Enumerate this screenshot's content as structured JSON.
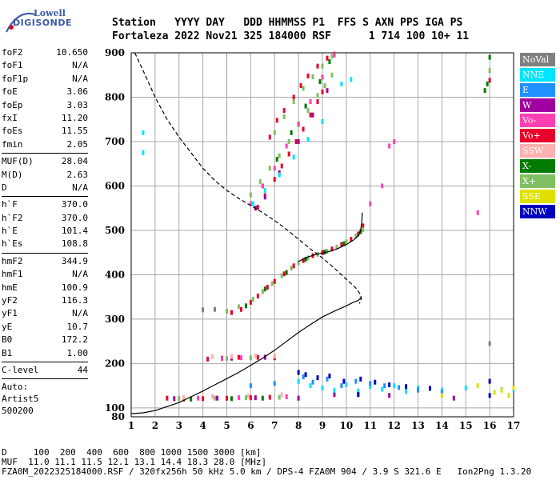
{
  "logo": {
    "line1": "Lowell",
    "line2": "DIGISONDE"
  },
  "header": {
    "line1": "Station   YYYY DAY   DDD HHMMSS P1  FFS S AXN PPS IGA PS",
    "line2": "Fortaleza 2022 Nov21 325 184000 RSF      1 714 100 10+ 11"
  },
  "params": [
    {
      "name": "foF2",
      "value": "10.650"
    },
    {
      "name": "foF1",
      "value": "N/A"
    },
    {
      "name": "foF1p",
      "value": "N/A"
    },
    {
      "name": "foE",
      "value": "3.06"
    },
    {
      "name": "foEp",
      "value": "3.03"
    },
    {
      "name": "fxI",
      "value": "11.20"
    },
    {
      "name": "foEs",
      "value": "11.55"
    },
    {
      "name": "fmin",
      "value": "2.05"
    },
    {
      "sep": true
    },
    {
      "name": "MUF(D)",
      "value": "28.04"
    },
    {
      "name": "M(D)",
      "value": "2.63"
    },
    {
      "name": "D",
      "value": "N/A"
    },
    {
      "sep": true
    },
    {
      "name": "h`F",
      "value": "370.0"
    },
    {
      "name": "h`F2",
      "value": "370.0"
    },
    {
      "name": "h`E",
      "value": "101.4"
    },
    {
      "name": "h`Es",
      "value": "108.8"
    },
    {
      "sep": true
    },
    {
      "name": "hmF2",
      "value": "344.9"
    },
    {
      "name": "hmF1",
      "value": "N/A"
    },
    {
      "name": "hmE",
      "value": "100.9"
    },
    {
      "name": "yF2",
      "value": "116.3"
    },
    {
      "name": "yF1",
      "value": "N/A"
    },
    {
      "name": "yE",
      "value": "10.7"
    },
    {
      "name": "B0",
      "value": "172.2"
    },
    {
      "name": "B1",
      "value": "1.00"
    },
    {
      "sep": true
    },
    {
      "name": "C-level",
      "value": "44"
    },
    {
      "sep": true
    },
    {
      "text": "Auto:"
    },
    {
      "text": "Artist5"
    },
    {
      "text": "500200"
    }
  ],
  "legend": [
    {
      "label": "NoVal",
      "color": "#808080"
    },
    {
      "label": "NNE",
      "color": "#00e5ff"
    },
    {
      "label": "E",
      "color": "#1e90ff"
    },
    {
      "label": "W",
      "color": "#a000a0"
    },
    {
      "label": "Vo-",
      "color": "#ff40b0"
    },
    {
      "label": "Vo+",
      "color": "#e8002a"
    },
    {
      "label": "SSW",
      "color": "#ffb0b0"
    },
    {
      "label": "X-",
      "color": "#007a00"
    },
    {
      "label": "X+",
      "color": "#80c060"
    },
    {
      "label": "SSE",
      "color": "#e0e000"
    },
    {
      "label": "NNW",
      "color": "#0000c0"
    }
  ],
  "footer": {
    "line1": "D     100  200  400  600  800 1000 1500 3000 [km]",
    "line2": "MUF  11.0 11.1 11.5 12.1 13.1 14.4 18.3 28.0 [MHz]",
    "line3": "FZA0M_2022325184000.RSF / 320fx256h 50 kHz 5.0 km / DPS-4 FZA0M 904 / 3.9 S 321.6 E   Ion2Png 1.3.20"
  },
  "chart_data": {
    "type": "scatter",
    "xlim": [
      1,
      17
    ],
    "ylim": [
      80,
      900
    ],
    "xticks": [
      1,
      2,
      3,
      4,
      5,
      6,
      7,
      8,
      9,
      10,
      11,
      12,
      13,
      14,
      15,
      16,
      17
    ],
    "yticks": [
      100,
      200,
      300,
      400,
      500,
      600,
      700,
      800,
      900
    ],
    "ytick_labels_extra": [
      80
    ],
    "grid": true,
    "legend_position": "right",
    "series": [
      {
        "legend_index": 5,
        "points": [
          [
            5.2,
            315
          ],
          [
            5.6,
            322
          ],
          [
            6.0,
            338
          ],
          [
            6.3,
            352
          ],
          [
            6.7,
            372
          ],
          [
            7.0,
            385
          ],
          [
            7.4,
            402
          ],
          [
            7.8,
            420
          ],
          [
            8.2,
            432
          ],
          [
            8.6,
            443
          ],
          [
            9.0,
            450
          ],
          [
            9.4,
            458
          ],
          [
            9.8,
            468
          ],
          [
            10.2,
            480
          ],
          [
            10.5,
            492
          ],
          [
            10.7,
            510
          ],
          [
            6.3,
            552
          ],
          [
            6.6,
            578
          ],
          [
            7.0,
            615
          ],
          [
            7.3,
            645
          ],
          [
            7.6,
            672
          ],
          [
            7.9,
            700
          ],
          [
            8.2,
            728
          ],
          [
            8.5,
            760
          ],
          [
            8.8,
            790
          ],
          [
            9.0,
            812
          ],
          [
            6.8,
            710
          ],
          [
            7.1,
            748
          ],
          [
            7.4,
            770
          ],
          [
            7.8,
            800
          ],
          [
            8.1,
            826
          ],
          [
            8.4,
            848
          ],
          [
            8.8,
            870
          ],
          [
            9.2,
            888
          ],
          [
            9.5,
            897
          ],
          [
            2.5,
            122
          ],
          [
            3.2,
            120
          ],
          [
            4.0,
            121
          ],
          [
            5.0,
            122
          ],
          [
            6.0,
            123
          ],
          [
            6.8,
            124
          ],
          [
            4.2,
            210
          ],
          [
            4.8,
            212
          ],
          [
            5.5,
            214
          ],
          [
            6.3,
            214
          ],
          [
            7.0,
            213
          ],
          [
            16.0,
            838
          ]
        ]
      },
      {
        "legend_index": 8,
        "points": [
          [
            5.0,
            318
          ],
          [
            5.5,
            328
          ],
          [
            6.1,
            345
          ],
          [
            6.5,
            362
          ],
          [
            6.9,
            380
          ],
          [
            7.3,
            398
          ],
          [
            7.7,
            415
          ],
          [
            8.0,
            427
          ],
          [
            8.4,
            438
          ],
          [
            8.8,
            446
          ],
          [
            9.2,
            453
          ],
          [
            9.6,
            462
          ],
          [
            10.0,
            474
          ],
          [
            10.4,
            487
          ],
          [
            10.7,
            502
          ],
          [
            6.0,
            580
          ],
          [
            6.4,
            610
          ],
          [
            6.8,
            640
          ],
          [
            7.2,
            668
          ],
          [
            7.6,
            700
          ],
          [
            8.0,
            738
          ],
          [
            8.4,
            770
          ],
          [
            8.8,
            804
          ],
          [
            9.1,
            826
          ],
          [
            9.4,
            850
          ],
          [
            7.0,
            720
          ],
          [
            7.4,
            756
          ],
          [
            7.8,
            790
          ],
          [
            8.2,
            820
          ],
          [
            8.6,
            846
          ],
          [
            9.0,
            870
          ],
          [
            9.4,
            892
          ],
          [
            3.0,
            121
          ],
          [
            4.5,
            122
          ],
          [
            5.8,
            123
          ],
          [
            7.2,
            124
          ],
          [
            5.0,
            211
          ],
          [
            6.0,
            213
          ],
          [
            16.0,
            860
          ]
        ]
      },
      {
        "legend_index": 7,
        "points": [
          [
            5.8,
            330
          ],
          [
            6.6,
            368
          ],
          [
            7.5,
            405
          ],
          [
            8.3,
            435
          ],
          [
            9.1,
            451
          ],
          [
            9.9,
            470
          ],
          [
            10.6,
            497
          ],
          [
            6.5,
            600
          ],
          [
            7.1,
            660
          ],
          [
            7.7,
            720
          ],
          [
            8.3,
            780
          ],
          [
            8.9,
            835
          ],
          [
            9.3,
            880
          ],
          [
            15.8,
            815
          ],
          [
            15.9,
            830
          ],
          [
            16.0,
            890
          ],
          [
            3.5,
            120
          ],
          [
            5.2,
            121
          ],
          [
            6.5,
            122
          ]
        ]
      },
      {
        "legend_index": 4,
        "points": [
          [
            6.0,
            560
          ],
          [
            6.5,
            600
          ],
          [
            7.0,
            640
          ],
          [
            7.5,
            690
          ],
          [
            8.0,
            740
          ],
          [
            8.5,
            790
          ],
          [
            9.0,
            845
          ],
          [
            9.5,
            895
          ],
          [
            11.0,
            560
          ],
          [
            11.5,
            600
          ],
          [
            12.0,
            700
          ],
          [
            11.8,
            690
          ],
          [
            15.5,
            540
          ],
          [
            4.8,
            211
          ],
          [
            5.6,
            213
          ],
          [
            3.8,
            122
          ],
          [
            5.5,
            123
          ],
          [
            7.5,
            125
          ]
        ]
      },
      {
        "legend_index": 3,
        "points": [
          [
            6.2,
            550
          ],
          [
            6.6,
            575
          ],
          [
            7.2,
            630
          ],
          [
            8.0,
            700
          ],
          [
            8.6,
            760
          ],
          [
            9.2,
            815
          ],
          [
            5.2,
            212
          ],
          [
            6.6,
            214
          ],
          [
            2.8,
            121
          ],
          [
            4.6,
            122
          ],
          [
            6.2,
            123
          ],
          [
            8.0,
            122
          ],
          [
            9.5,
            130
          ],
          [
            10.5,
            131
          ],
          [
            11.8,
            128
          ],
          [
            14.5,
            122
          ]
        ]
      },
      {
        "legend_index": 1,
        "points": [
          [
            1.5,
            720
          ],
          [
            1.5,
            675
          ],
          [
            6.1,
            560
          ],
          [
            6.6,
            590
          ],
          [
            7.2,
            625
          ],
          [
            7.8,
            665
          ],
          [
            8.4,
            705
          ],
          [
            9.0,
            745
          ],
          [
            9.8,
            830
          ],
          [
            10.2,
            840
          ],
          [
            8.0,
            160
          ],
          [
            8.5,
            150
          ],
          [
            9.0,
            145
          ],
          [
            9.5,
            140
          ],
          [
            10.0,
            152
          ],
          [
            10.5,
            138
          ],
          [
            11.0,
            148
          ],
          [
            11.5,
            142
          ],
          [
            12.0,
            150
          ],
          [
            12.5,
            137
          ],
          [
            13.0,
            145
          ],
          [
            14.0,
            140
          ],
          [
            15.0,
            145
          ],
          [
            16.5,
            141
          ],
          [
            17.0,
            142
          ]
        ]
      },
      {
        "legend_index": 2,
        "points": [
          [
            8.2,
            170
          ],
          [
            8.6,
            158
          ],
          [
            9.2,
            165
          ],
          [
            9.8,
            150
          ],
          [
            10.4,
            160
          ],
          [
            11.0,
            155
          ],
          [
            11.6,
            150
          ],
          [
            12.2,
            146
          ],
          [
            13.0,
            140
          ],
          [
            14.0,
            135
          ],
          [
            6.0,
            150
          ],
          [
            7.0,
            155
          ]
        ]
      },
      {
        "legend_index": 10,
        "points": [
          [
            8.0,
            180
          ],
          [
            8.3,
            175
          ],
          [
            8.8,
            168
          ],
          [
            9.3,
            172
          ],
          [
            9.9,
            160
          ],
          [
            10.6,
            165
          ],
          [
            11.2,
            158
          ],
          [
            11.8,
            152
          ],
          [
            12.5,
            148
          ],
          [
            13.5,
            144
          ],
          [
            16.0,
            128
          ],
          [
            16.0,
            160
          ],
          [
            10.5,
            130
          ]
        ]
      },
      {
        "legend_index": 6,
        "points": [
          [
            3.2,
            124
          ],
          [
            4.4,
            126
          ],
          [
            5.9,
            127
          ],
          [
            7.3,
            130
          ],
          [
            4.4,
            216
          ],
          [
            5.2,
            216
          ],
          [
            6.2,
            217
          ],
          [
            7.0,
            217
          ]
        ]
      },
      {
        "legend_index": 9,
        "points": [
          [
            16.2,
            135
          ],
          [
            16.5,
            140
          ],
          [
            16.8,
            128
          ],
          [
            17.0,
            145
          ],
          [
            15.5,
            150
          ],
          [
            14.0,
            128
          ]
        ]
      },
      {
        "legend_index": 0,
        "points": [
          [
            4.0,
            321
          ],
          [
            4.5,
            322
          ],
          [
            16.0,
            245
          ]
        ]
      }
    ],
    "lines": [
      {
        "style": "dashed",
        "points": [
          [
            1.15,
            900
          ],
          [
            1.5,
            860
          ],
          [
            2.0,
            800
          ],
          [
            2.5,
            750
          ],
          [
            3.0,
            710
          ],
          [
            3.5,
            675
          ],
          [
            4.0,
            640
          ],
          [
            4.5,
            612
          ],
          [
            5.0,
            590
          ],
          [
            5.5,
            572
          ],
          [
            6.0,
            556
          ],
          [
            6.5,
            540
          ],
          [
            7.0,
            522
          ],
          [
            7.5,
            502
          ],
          [
            8.0,
            480
          ],
          [
            8.5,
            458
          ],
          [
            9.0,
            438
          ],
          [
            9.5,
            415
          ],
          [
            10.0,
            390
          ],
          [
            10.4,
            370
          ],
          [
            10.6,
            355
          ],
          [
            10.62,
            345
          ],
          [
            10.55,
            335
          ]
        ]
      },
      {
        "style": "solid",
        "points": [
          [
            1.0,
            87
          ],
          [
            1.5,
            89
          ],
          [
            2.0,
            94
          ],
          [
            2.5,
            103
          ],
          [
            3.0,
            112
          ],
          [
            3.5,
            125
          ],
          [
            4.0,
            138
          ],
          [
            4.5,
            152
          ],
          [
            5.0,
            166
          ],
          [
            5.5,
            180
          ],
          [
            6.0,
            196
          ],
          [
            6.5,
            212
          ],
          [
            7.0,
            230
          ],
          [
            7.5,
            250
          ],
          [
            8.0,
            270
          ],
          [
            8.5,
            288
          ],
          [
            9.0,
            305
          ],
          [
            9.5,
            318
          ],
          [
            10.0,
            330
          ],
          [
            10.3,
            338
          ],
          [
            10.5,
            342
          ],
          [
            10.65,
            350
          ]
        ]
      },
      {
        "style": "solid",
        "points": [
          [
            8.0,
            430
          ],
          [
            8.4,
            440
          ],
          [
            8.8,
            447
          ],
          [
            9.2,
            451
          ],
          [
            9.6,
            458
          ],
          [
            10.0,
            468
          ],
          [
            10.3,
            478
          ],
          [
            10.5,
            488
          ],
          [
            10.6,
            500
          ],
          [
            10.65,
            520
          ],
          [
            10.67,
            540
          ]
        ]
      }
    ]
  }
}
